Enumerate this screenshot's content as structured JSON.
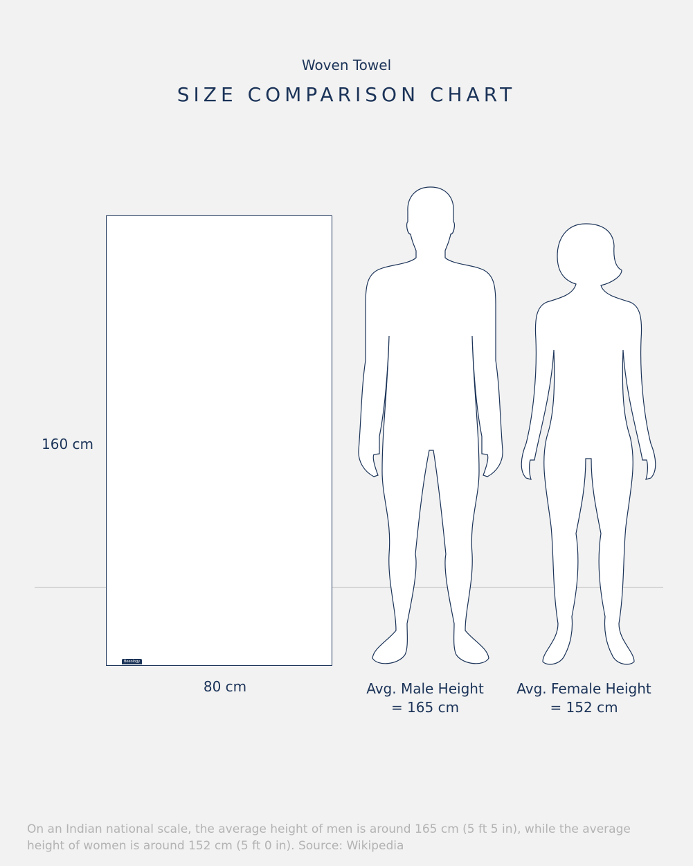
{
  "header": {
    "subtitle": "Woven Towel",
    "title": "SIZE COMPARISON CHART"
  },
  "towel": {
    "height_label": "160 cm",
    "width_label": "80 cm",
    "logo_text": "Beeology"
  },
  "figures": {
    "male": {
      "label_line1": "Avg. Male Height",
      "label_line2": "= 165 cm"
    },
    "female": {
      "label_line1": "Avg. Female Height",
      "label_line2": "= 152 cm"
    }
  },
  "footnote": "On an Indian national scale, the average height of men is around 165 cm (5 ft 5 in), while the average height of women is around 152 cm (5 ft 0 in). Source: Wikipedia",
  "colors": {
    "text": "#1b3358",
    "background": "#f2f2f2",
    "footnote": "#b3b3b3"
  }
}
